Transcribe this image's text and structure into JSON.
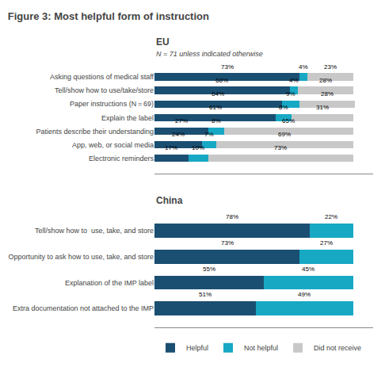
{
  "title": "Figure 3: Most helpful form of instruction",
  "chart_data": [
    {
      "type": "bar",
      "title": "EU",
      "subtitle": "N = 71 unless indicated otherwise",
      "orientation": "horizontal",
      "stacked": true,
      "data_labels": true,
      "tick_labels": "y",
      "grid": false,
      "legend": "bottom",
      "xlim": [
        0,
        110
      ],
      "categories": [
        "Asking questions of medical staff",
        "Tell/show how to use/take/store",
        "Paper instructions (N = 69)",
        "Explain the label",
        "Patients describe their understanding",
        "App, web, or social media",
        "Electronic reminders"
      ],
      "series": [
        {
          "name": "Helpful",
          "color": "#1b4f72",
          "values": [
            73,
            68,
            64,
            61,
            27,
            24,
            17
          ],
          "value_labels": [
            "73%",
            "68%",
            "64%",
            "61%",
            "27%",
            "24%",
            "17%"
          ]
        },
        {
          "name": "Not helpful",
          "color": "#17a8c4",
          "values": [
            4,
            4,
            9,
            8,
            8,
            7,
            10
          ],
          "value_labels": [
            "4%",
            "4%",
            "9%",
            "8%",
            "8%",
            "7%",
            "10%"
          ]
        },
        {
          "name": "Did not receive",
          "color": "#c8c8c8",
          "values": [
            23,
            28,
            28,
            31,
            65,
            69,
            73
          ],
          "value_labels": [
            "23%",
            "28%",
            "28%",
            "31%",
            "65%",
            "69%",
            "73%"
          ]
        }
      ]
    },
    {
      "type": "bar",
      "title": "China",
      "orientation": "horizontal",
      "stacked": true,
      "data_labels": true,
      "tick_labels": "y",
      "grid": false,
      "xlim": [
        0,
        110
      ],
      "categories": [
        "Tell/show how to  use, take, and store",
        "Opportunity to ask how to use, take, and store",
        "Explanation of the IMP label",
        "Extra documentation not attached to the IMP"
      ],
      "series": [
        {
          "name": "Helpful",
          "color": "#1b4f72",
          "values": [
            78,
            73,
            55,
            51
          ],
          "value_labels": [
            "78%",
            "73%",
            "55%",
            "51%"
          ]
        },
        {
          "name": "Not helpful",
          "color": "#17a8c4",
          "values": [
            22,
            27,
            45,
            49
          ],
          "value_labels": [
            "22%",
            "27%",
            "45%",
            "49%"
          ]
        }
      ]
    }
  ]
}
